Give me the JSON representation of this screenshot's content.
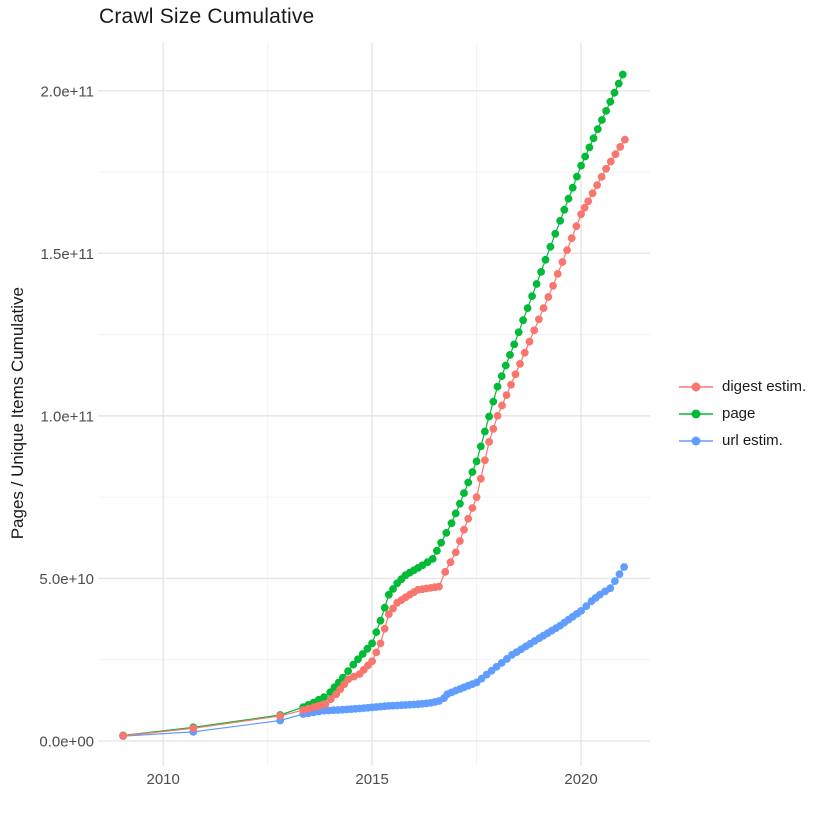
{
  "chart_data": {
    "type": "line",
    "title": "Crawl Size Cumulative",
    "xlabel": "",
    "ylabel": "Pages / Unique Items Cumulative",
    "grid": true,
    "legend_position": "right",
    "xlim": [
      2008.44,
      2021.65
    ],
    "ylim": [
      -7700000000.0,
      214700000000.0
    ],
    "x_ticks_major": [
      2010,
      2015,
      2020
    ],
    "x_tick_labels": [
      "2010",
      "2015",
      "2020"
    ],
    "x_ticks_minor": [
      2012.5,
      2017.5
    ],
    "y_ticks_major": [
      0,
      50000000000.0,
      100000000000.0,
      150000000000.0,
      200000000000.0
    ],
    "y_tick_labels": [
      "0.0e+00",
      "5.0e+10",
      "1.0e+11",
      "1.5e+11",
      "2.0e+11"
    ],
    "y_ticks_minor": [
      25000000000.0,
      75000000000.0,
      125000000000.0,
      175000000000.0
    ],
    "marker_interval_years": 0.11,
    "interpolate_from_year": 2013.3,
    "colors": {
      "digest": "#F8766D",
      "page": "#00BA38",
      "url": "#619CFF",
      "grid_major": "#e5e5e5",
      "grid_minor": "#f2f2f2",
      "tick_text": "#4d4d4d"
    },
    "series": [
      {
        "name": "digest estim.",
        "color": "#F8766D",
        "points": [
          [
            2009.04,
            1600000000.0
          ],
          [
            2010.72,
            3900000000.0
          ],
          [
            2012.8,
            7700000000.0
          ],
          [
            2013.35,
            9500000000.0
          ],
          [
            2013.6,
            10400000000.0
          ],
          [
            2013.88,
            11300000000.0
          ],
          [
            2014.14,
            14400000000.0
          ],
          [
            2014.43,
            19000000000.0
          ],
          [
            2014.7,
            20600000000.0
          ],
          [
            2015.0,
            24500000000.0
          ],
          [
            2015.2,
            30000000000.0
          ],
          [
            2015.4,
            39000000000.0
          ],
          [
            2015.6,
            42500000000.0
          ],
          [
            2015.9,
            45000000000.0
          ],
          [
            2016.1,
            46500000000.0
          ],
          [
            2016.6,
            47500000000.0
          ],
          [
            2016.75,
            52000000000.0
          ],
          [
            2017.0,
            58000000000.0
          ],
          [
            2017.2,
            65000000000.0
          ],
          [
            2017.5,
            75000000000.0
          ],
          [
            2017.8,
            92000000000.0
          ],
          [
            2018.0,
            100000000000.0
          ],
          [
            2018.54,
            116000000000.0
          ],
          [
            2019.33,
            140000000000.0
          ],
          [
            2020.0,
            162000000000.0
          ],
          [
            2020.17,
            166000000000.0
          ],
          [
            2020.6,
            176000000000.0
          ],
          [
            2021.05,
            185000000000.0
          ]
        ]
      },
      {
        "name": "page",
        "color": "#00BA38",
        "points": [
          [
            2009.04,
            1700000000.0
          ],
          [
            2010.72,
            4200000000.0
          ],
          [
            2012.8,
            8000000000.0
          ],
          [
            2013.35,
            10400000000.0
          ],
          [
            2013.6,
            11800000000.0
          ],
          [
            2013.85,
            13500000000.0
          ],
          [
            2014.0,
            15000000000.0
          ],
          [
            2014.3,
            19500000000.0
          ],
          [
            2014.55,
            23500000000.0
          ],
          [
            2015.0,
            30000000000.0
          ],
          [
            2015.2,
            37000000000.0
          ],
          [
            2015.4,
            45000000000.0
          ],
          [
            2015.6,
            48500000000.0
          ],
          [
            2015.8,
            51000000000.0
          ],
          [
            2016.0,
            52500000000.0
          ],
          [
            2016.2,
            54000000000.0
          ],
          [
            2016.45,
            56000000000.0
          ],
          [
            2016.65,
            61000000000.0
          ],
          [
            2016.9,
            67000000000.0
          ],
          [
            2017.1,
            73000000000.0
          ],
          [
            2017.5,
            86000000000.0
          ],
          [
            2018.0,
            109000000000.0
          ],
          [
            2018.4,
            122000000000.0
          ],
          [
            2019.15,
            148000000000.0
          ],
          [
            2019.5,
            160000000000.0
          ],
          [
            2020.0,
            177000000000.0
          ],
          [
            2020.5,
            191000000000.0
          ],
          [
            2021.0,
            205000000000.0
          ]
        ]
      },
      {
        "name": "url estim.",
        "color": "#619CFF",
        "points": [
          [
            2009.04,
            1500000000.0
          ],
          [
            2010.72,
            2800000000.0
          ],
          [
            2012.8,
            6300000000.0
          ],
          [
            2013.35,
            8300000000.0
          ],
          [
            2013.6,
            8800000000.0
          ],
          [
            2013.85,
            9300000000.0
          ],
          [
            2014.4,
            9700000000.0
          ],
          [
            2014.9,
            10200000000.0
          ],
          [
            2015.3,
            10700000000.0
          ],
          [
            2015.7,
            11000000000.0
          ],
          [
            2016.1,
            11300000000.0
          ],
          [
            2016.4,
            11700000000.0
          ],
          [
            2016.6,
            12300000000.0
          ],
          [
            2016.72,
            13200000000.0
          ],
          [
            2016.8,
            14400000000.0
          ],
          [
            2017.0,
            15500000000.0
          ],
          [
            2017.5,
            18000000000.0
          ],
          [
            2018.1,
            24000000000.0
          ],
          [
            2018.35,
            26500000000.0
          ],
          [
            2019.0,
            31600000000.0
          ],
          [
            2019.5,
            35500000000.0
          ],
          [
            2020.0,
            40000000000.0
          ],
          [
            2020.25,
            43000000000.0
          ],
          [
            2020.45,
            45000000000.0
          ],
          [
            2020.7,
            47000000000.0
          ],
          [
            2021.03,
            53500000000.0
          ]
        ]
      }
    ]
  }
}
